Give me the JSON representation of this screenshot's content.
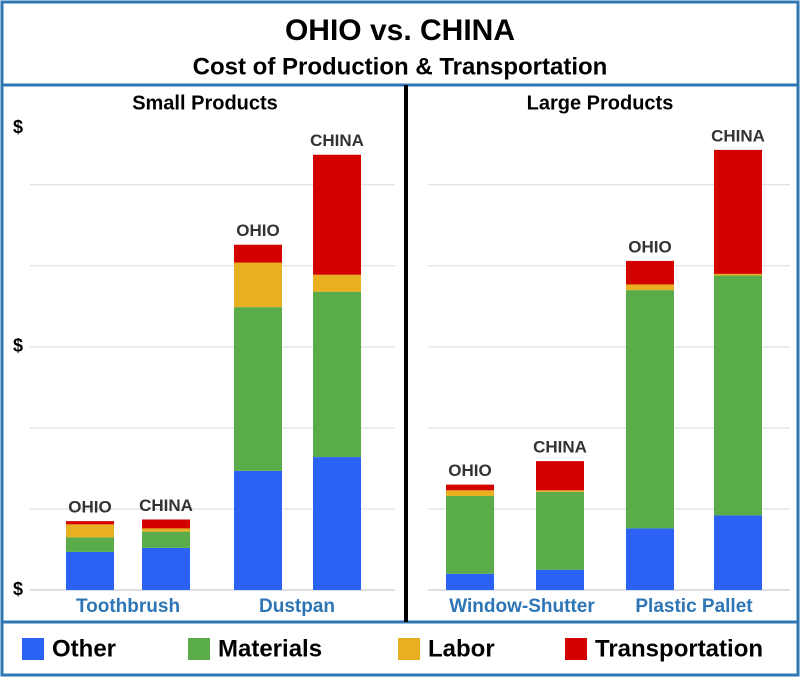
{
  "header": {
    "title": "OHIO vs. CHINA",
    "subtitle": "Cost of Production & Transportation"
  },
  "chart_data": [
    {
      "type": "bar",
      "stacked": true,
      "title": "Small Products",
      "groups": [
        "Toothbrush",
        "Dustpan"
      ],
      "categories": [
        "OHIO",
        "CHINA",
        "OHIO",
        "CHINA"
      ],
      "series": [
        {
          "name": "Other",
          "color": "#2a62f5",
          "values": [
            0.47,
            0.52,
            1.47,
            1.64
          ]
        },
        {
          "name": "Materials",
          "color": "#5aab4a",
          "values": [
            0.18,
            0.2,
            2.02,
            2.04
          ]
        },
        {
          "name": "Labor",
          "color": "#e8b020",
          "values": [
            0.16,
            0.04,
            0.55,
            0.21
          ]
        },
        {
          "name": "Transportation",
          "color": "#d40000",
          "values": [
            0.04,
            0.11,
            0.22,
            1.48
          ]
        }
      ],
      "ylim": [
        0,
        5.7
      ],
      "yticks": [
        {
          "value": 0,
          "label": "$"
        },
        {
          "value": 3,
          "label": "$"
        },
        {
          "value": 5.7,
          "label": "$"
        }
      ],
      "grid_values": [
        1,
        2,
        3,
        4,
        5
      ],
      "grid": true
    },
    {
      "type": "bar",
      "stacked": true,
      "title": "Large Products",
      "groups": [
        "Window-Shutter",
        "Plastic Pallet"
      ],
      "categories": [
        "OHIO",
        "CHINA",
        "OHIO",
        "CHINA"
      ],
      "series": [
        {
          "name": "Other",
          "color": "#2a62f5",
          "values": [
            0.2,
            0.25,
            0.76,
            0.92
          ]
        },
        {
          "name": "Materials",
          "color": "#5aab4a",
          "values": [
            0.96,
            0.96,
            2.94,
            2.96
          ]
        },
        {
          "name": "Labor",
          "color": "#e8b020",
          "values": [
            0.07,
            0.02,
            0.07,
            0.02
          ]
        },
        {
          "name": "Transportation",
          "color": "#d40000",
          "values": [
            0.07,
            0.36,
            0.29,
            1.53
          ]
        }
      ],
      "ylim": [
        0,
        5.7
      ],
      "grid_values": [
        1,
        2,
        3,
        4,
        5
      ],
      "grid": true
    }
  ]
}
